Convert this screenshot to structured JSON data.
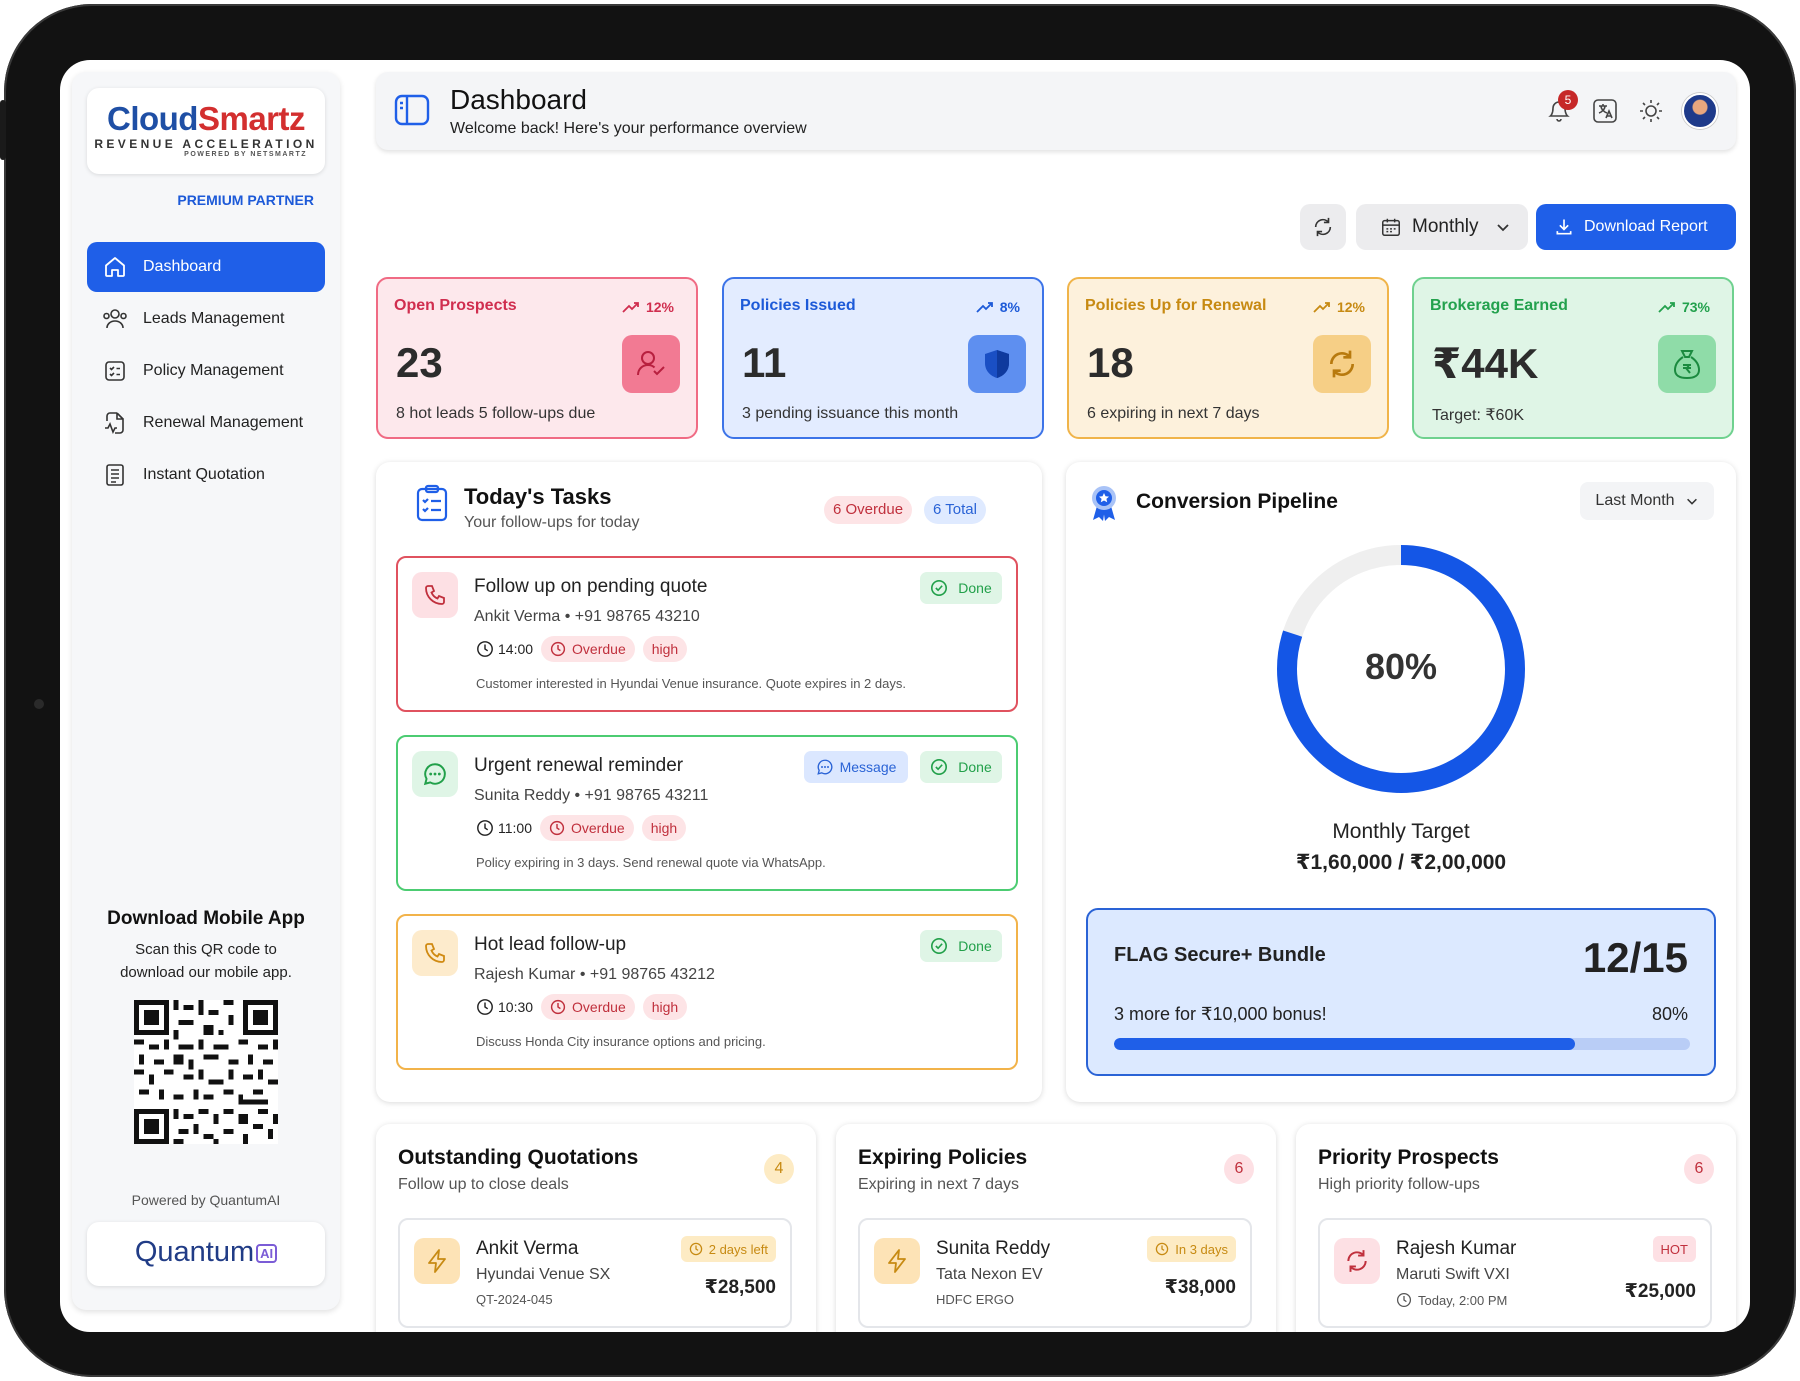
{
  "brand": {
    "logo_part1": "Cloud",
    "logo_part2": "Smartz",
    "tagline": "REVENUE ACCELERATION",
    "powered_by_netsmartz": "POWERED BY NETSMARTZ",
    "partner": "PREMIUM PARTNER"
  },
  "sidebar": {
    "items": [
      {
        "label": "Dashboard",
        "icon": "home-icon",
        "active": true
      },
      {
        "label": "Leads Management",
        "icon": "users-icon"
      },
      {
        "label": "Policy Management",
        "icon": "checklist-icon"
      },
      {
        "label": "Renewal Management",
        "icon": "file-activity-icon"
      },
      {
        "label": "Instant Quotation",
        "icon": "document-list-icon"
      }
    ],
    "app_title": "Download Mobile App",
    "app_sub": "Scan this QR code to download our mobile app.",
    "powered": "Powered by QuantumAI",
    "quantum_logo": "Quantum",
    "quantum_ai": "AI"
  },
  "header": {
    "title": "Dashboard",
    "subtitle": "Welcome back! Here's your performance overview",
    "notification_count": "5"
  },
  "controls": {
    "period": "Monthly",
    "download_label": "Download Report"
  },
  "stats": [
    {
      "title": "Open Prospects",
      "trend": "12%",
      "value": "23",
      "desc": "8  hot leads 5 follow-ups due",
      "icon": "user-check-icon",
      "color": "#d02e4f"
    },
    {
      "title": "Policies Issued",
      "trend": "8%",
      "value": "11",
      "desc": "3 pending issuance this month",
      "icon": "shield-icon",
      "color": "#1d5ad8"
    },
    {
      "title": "Policies Up for Renewal",
      "trend": "12%",
      "value": "18",
      "desc": "6 expiring in next 7 days",
      "icon": "refresh-icon",
      "color": "#c78a12"
    },
    {
      "title": "Brokerage Earned",
      "trend": "73%",
      "value": "₹44K",
      "desc": "Target: ₹60K",
      "icon": "money-bag-icon",
      "color": "#23a14d"
    }
  ],
  "tasks": {
    "title": "Today's Tasks",
    "subtitle": "Your follow-ups for today",
    "overdue_label": "6 Overdue",
    "total_label": "6 Total",
    "items": [
      {
        "title": "Follow up on pending quote",
        "person": "Ankit Verma • +91 98765 43210",
        "time": "14:00",
        "status": "Overdue",
        "priority": "high",
        "note": "Customer interested in Hyundai Venue insurance. Quote expires in 2 days.",
        "done_label": "Done"
      },
      {
        "title": "Urgent renewal reminder",
        "person": "Sunita Reddy • +91 98765 43211",
        "time": "11:00",
        "status": "Overdue",
        "priority": "high",
        "note": "Policy expiring in 3 days. Send renewal quote via WhatsApp.",
        "done_label": "Done",
        "message_label": "Message"
      },
      {
        "title": "Hot lead follow-up",
        "person": "Rajesh Kumar • +91 98765 43212",
        "time": "10:30",
        "status": "Overdue",
        "priority": "high",
        "note": "Discuss Honda City insurance options and pricing.",
        "done_label": "Done"
      }
    ]
  },
  "pipeline": {
    "title": "Conversion Pipeline",
    "range": "Last Month",
    "percent_label": "80%",
    "percent_value": 0.8,
    "target_label": "Monthly Target",
    "target_value": "₹1,60,000 / ₹2,00,000",
    "bundle": {
      "name": "FLAG Secure+ Bundle",
      "count": "12/15",
      "hint": "3 more for ₹10,000 bonus!",
      "percent_label": "80%",
      "progress": 0.8
    }
  },
  "bottom": [
    {
      "title": "Outstanding Quotations",
      "subtitle": "Follow up to close deals",
      "count": "4",
      "row": {
        "name": "Ankit Verma",
        "vehicle": "Hyundai Venue SX",
        "ref": "QT-2024-045",
        "badge": "2 days left",
        "amount": "₹28,500"
      }
    },
    {
      "title": "Expiring Policies",
      "subtitle": "Expiring in next 7 days",
      "count": "6",
      "row": {
        "name": "Sunita Reddy",
        "vehicle": "Tata Nexon EV",
        "ref": "HDFC ERGO",
        "badge": "In 3 days",
        "amount": "₹38,000"
      }
    },
    {
      "title": "Priority Prospects",
      "subtitle": "High priority follow-ups",
      "count": "6",
      "row": {
        "name": "Rajesh Kumar",
        "vehicle": "Maruti Swift VXI",
        "ref": "Today, 2:00 PM",
        "badge": "HOT",
        "amount": "₹25,000"
      }
    }
  ]
}
